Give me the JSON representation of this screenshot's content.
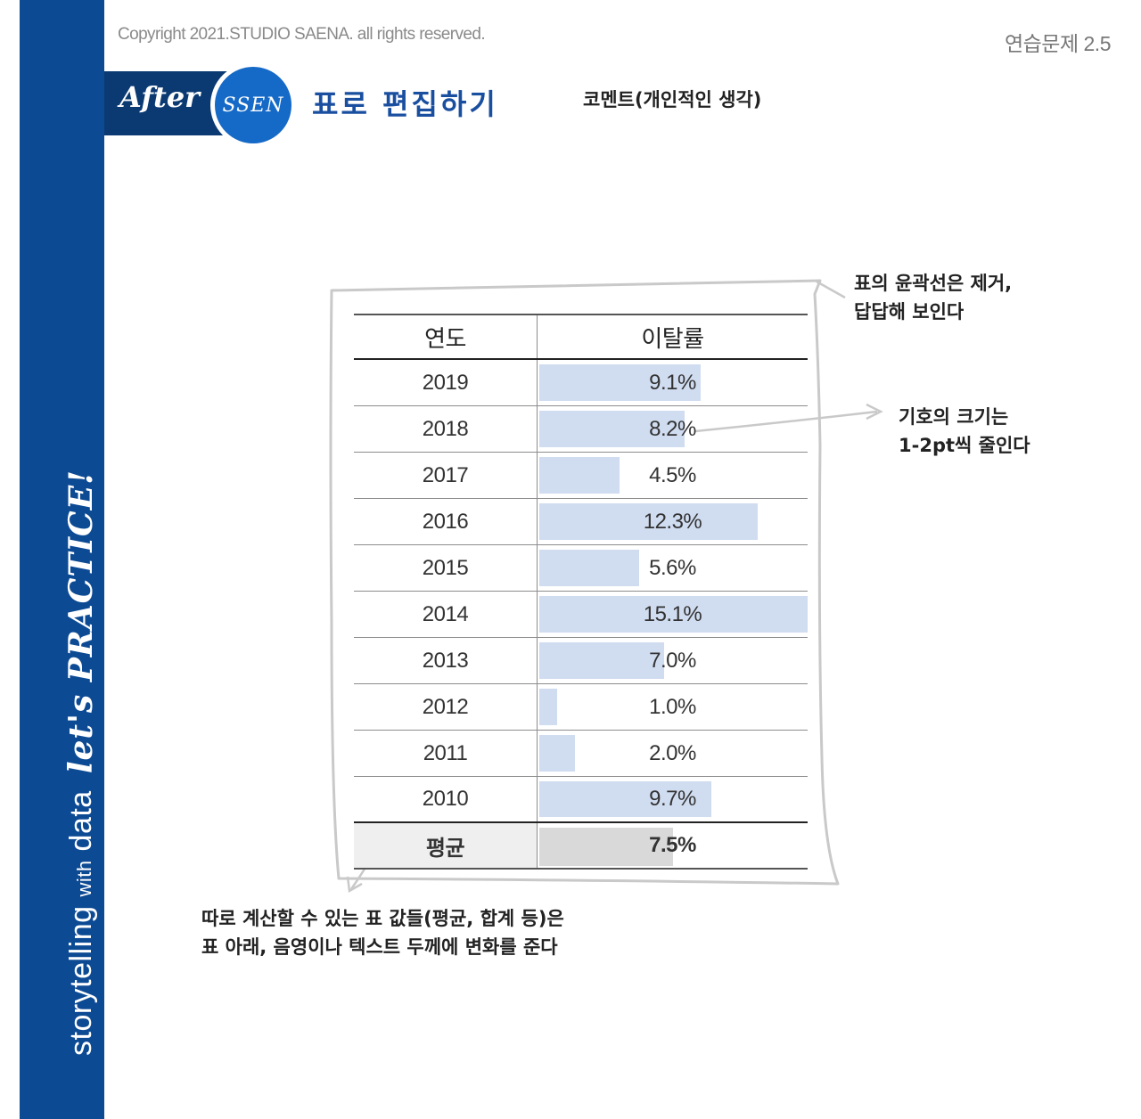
{
  "header": {
    "copyright": "Copyright 2021.STUDIO SAENA. all rights reserved.",
    "exercise_label": "연습문제 2.5",
    "badge_after": "After",
    "badge_ssen": "SSEN",
    "title": "표로 편집하기",
    "comment_heading": "코멘트(개인적인 생각)"
  },
  "side": {
    "brand_storytelling": "storytelling",
    "brand_with": "with",
    "brand_data": "data",
    "lets_practice": "let's PRACTICE!"
  },
  "table": {
    "columns": [
      "연도",
      "이탈률"
    ],
    "rows": [
      {
        "year": "2019",
        "label": "9.1%",
        "value": 9.1
      },
      {
        "year": "2018",
        "label": "8.2%",
        "value": 8.2
      },
      {
        "year": "2017",
        "label": "4.5%",
        "value": 4.5
      },
      {
        "year": "2016",
        "label": "12.3%",
        "value": 12.3
      },
      {
        "year": "2015",
        "label": "5.6%",
        "value": 5.6
      },
      {
        "year": "2014",
        "label": "15.1%",
        "value": 15.1
      },
      {
        "year": "2013",
        "label": "7.0%",
        "value": 7.0
      },
      {
        "year": "2012",
        "label": "1.0%",
        "value": 1.0
      },
      {
        "year": "2011",
        "label": "2.0%",
        "value": 2.0
      },
      {
        "year": "2010",
        "label": "9.7%",
        "value": 9.7
      }
    ],
    "average": {
      "year": "평균",
      "label": "7.5%",
      "value": 7.5
    },
    "max_value": 15.1,
    "bar_color": "#d0dcf0",
    "average_bar_color": "#d9d9d9"
  },
  "annotations": {
    "outline": [
      "표의 윤곽선은 제거,",
      "답답해 보인다"
    ],
    "symbol": [
      "기호의 크기는",
      "1-2pt씩 줄인다"
    ],
    "average": [
      "따로 계산할 수 있는 표 값들(평균, 합계 등)은",
      "표 아래, 음영이나 텍스트 두께에 변화를 준다"
    ]
  },
  "colors": {
    "side_band": "#0d4a94",
    "after_band": "#0b3a73",
    "ssen_circle": "#1569c7",
    "title": "#1a4fa0"
  }
}
